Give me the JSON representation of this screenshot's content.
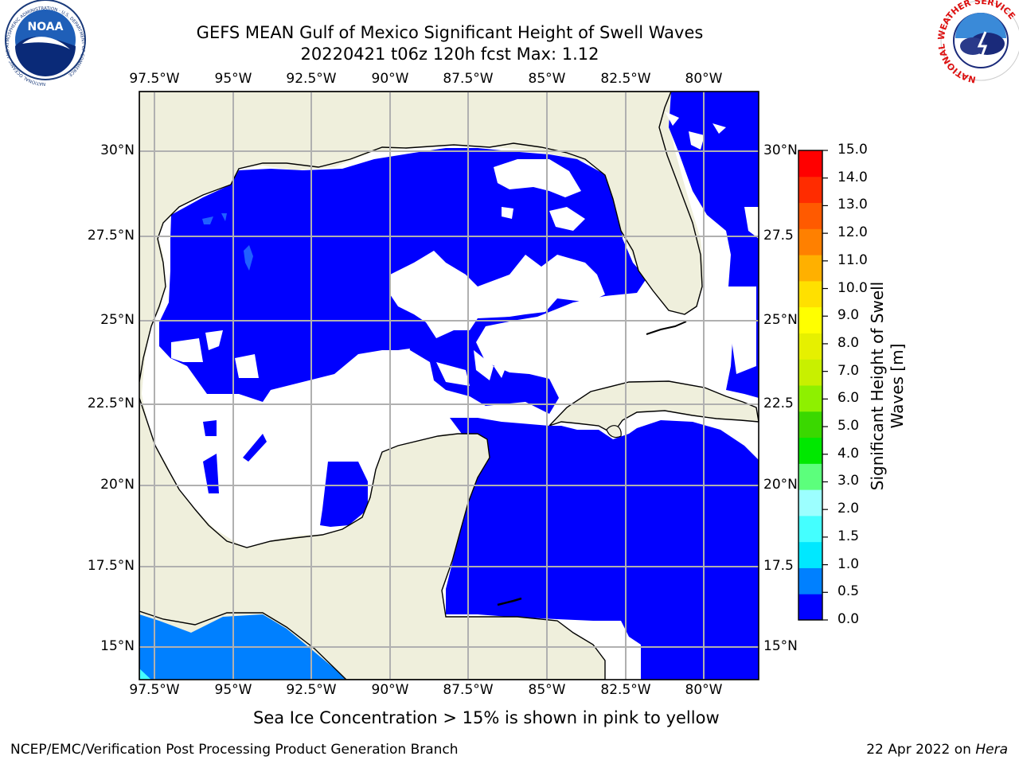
{
  "title": {
    "line1": "GEFS MEAN Gulf of Mexico Significant Height of Swell Waves",
    "line2": "20220421 t06z 120h fcst   Max: 1.12"
  },
  "map": {
    "lon_labels": [
      "97.5°W",
      "95°W",
      "92.5°W",
      "90°W",
      "87.5°W",
      "85°W",
      "82.5°W",
      "80°W"
    ],
    "lat_labels_left": [
      "30°N",
      "27.5°N",
      "25°N",
      "22.5°N",
      "20°N",
      "17.5°N",
      "15°N"
    ],
    "lat_labels_right": [
      "30°N",
      "27.5",
      "25°N",
      "22.5",
      "20°N",
      "17.5",
      "15°N"
    ],
    "land_color": "#efefdc",
    "grid_color": "#b0b0b0"
  },
  "colorbar": {
    "ticks": [
      "15.0",
      "14.0",
      "13.0",
      "12.0",
      "11.0",
      "10.0",
      "9.0",
      "8.0",
      "7.0",
      "6.0",
      "5.0",
      "4.0",
      "3.0",
      "2.0",
      "1.5",
      "1.0",
      "0.5",
      "0.0"
    ],
    "colors": [
      "#0000ff",
      "#0080ff",
      "#00e8ff",
      "#44ffff",
      "#9cffff",
      "#5cff7c",
      "#00e800",
      "#3ad800",
      "#8ef000",
      "#c8f000",
      "#e6f000",
      "#ffff00",
      "#ffe000",
      "#ffb000",
      "#ff8000",
      "#ff5a00",
      "#ff2c00",
      "#ff0000"
    ],
    "label_line1": "Significant Height of Swell",
    "label_line2": "Waves [m]"
  },
  "footer": {
    "ice_note": "Sea Ice Concentration > 15% is shown in pink to yellow",
    "credit": "NCEP/EMC/Verification Post Processing Product Generation Branch",
    "date": "22 Apr 2022 on",
    "host": "Hera"
  },
  "logos": {
    "noaa_text": "NOAA",
    "noaa_ring": "NATIONAL OCEANIC AND ATMOSPHERIC ADMINISTRATION · U.S. DEPARTMENT OF COMMERCE",
    "nws_ring": "NATIONAL WEATHER SERVICE"
  }
}
